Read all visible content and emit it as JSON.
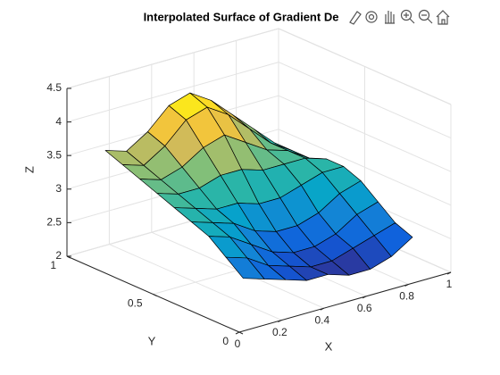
{
  "chart_data": {
    "type": "surface",
    "title": "Interpolated Surface of Gradient De",
    "xlabel": "X",
    "ylabel": "Y",
    "zlabel": "Z",
    "x": [
      0.1,
      0.2,
      0.3,
      0.4,
      0.5,
      0.6,
      0.7,
      0.8,
      0.9
    ],
    "y": [
      0.1,
      0.2,
      0.3,
      0.4,
      0.5,
      0.6,
      0.7,
      0.8,
      0.9
    ],
    "z": [
      [
        2.6,
        2.5,
        2.4,
        2.3,
        2.3,
        2.2,
        2.2,
        2.3,
        2.5
      ],
      [
        2.8,
        2.7,
        2.5,
        2.4,
        2.3,
        2.3,
        2.4,
        2.5,
        2.6
      ],
      [
        3.0,
        2.9,
        2.7,
        2.5,
        2.4,
        2.4,
        2.5,
        2.7,
        2.8
      ],
      [
        3.1,
        3.0,
        2.9,
        2.7,
        2.6,
        2.6,
        2.7,
        2.9,
        3.0
      ],
      [
        3.2,
        3.1,
        3.0,
        3.0,
        2.9,
        2.9,
        3.0,
        3.1,
        3.1
      ],
      [
        3.3,
        3.2,
        3.2,
        3.3,
        3.3,
        3.2,
        3.2,
        3.2,
        3.1
      ],
      [
        3.4,
        3.3,
        3.4,
        3.6,
        3.7,
        3.5,
        3.3,
        3.2,
        3.0
      ],
      [
        3.5,
        3.4,
        3.6,
        3.9,
        4.0,
        3.8,
        3.5,
        3.2,
        3.0
      ],
      [
        3.6,
        3.5,
        3.7,
        4.0,
        4.1,
        3.9,
        3.6,
        3.3,
        3.0
      ]
    ],
    "colormap": [
      "#352a87",
      "#0f5cdd",
      "#1481d6",
      "#06a4ca",
      "#2eb7a4",
      "#87bf77",
      "#d1bb59",
      "#fec832",
      "#f9fb0e"
    ],
    "xlim": [
      0,
      1
    ],
    "ylim": [
      0,
      1
    ],
    "zlim": [
      2,
      4.5
    ],
    "xticks": [
      0,
      0.2,
      0.4,
      0.6,
      0.8,
      1
    ],
    "yticks": [
      0,
      0.5,
      1
    ],
    "zticks": [
      2,
      2.5,
      3,
      3.5,
      4,
      4.5
    ],
    "grid": true
  }
}
